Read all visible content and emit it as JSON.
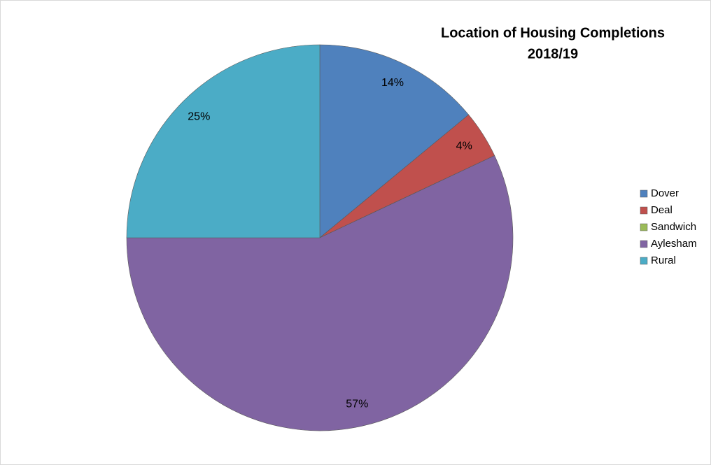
{
  "chart_data": {
    "type": "pie",
    "title": [
      "Location of Housing Completions",
      "2018/19"
    ],
    "categories": [
      "Dover",
      "Deal",
      "Sandwich",
      "Aylesham",
      "Rural"
    ],
    "values": [
      14,
      4,
      0,
      57,
      25
    ],
    "value_labels": [
      "14%",
      "4%",
      null,
      "57%",
      "25%"
    ],
    "colors": [
      "#4f81bd",
      "#c0504d",
      "#9bbb59",
      "#8064a2",
      "#4bacc6"
    ],
    "legend": "right"
  }
}
